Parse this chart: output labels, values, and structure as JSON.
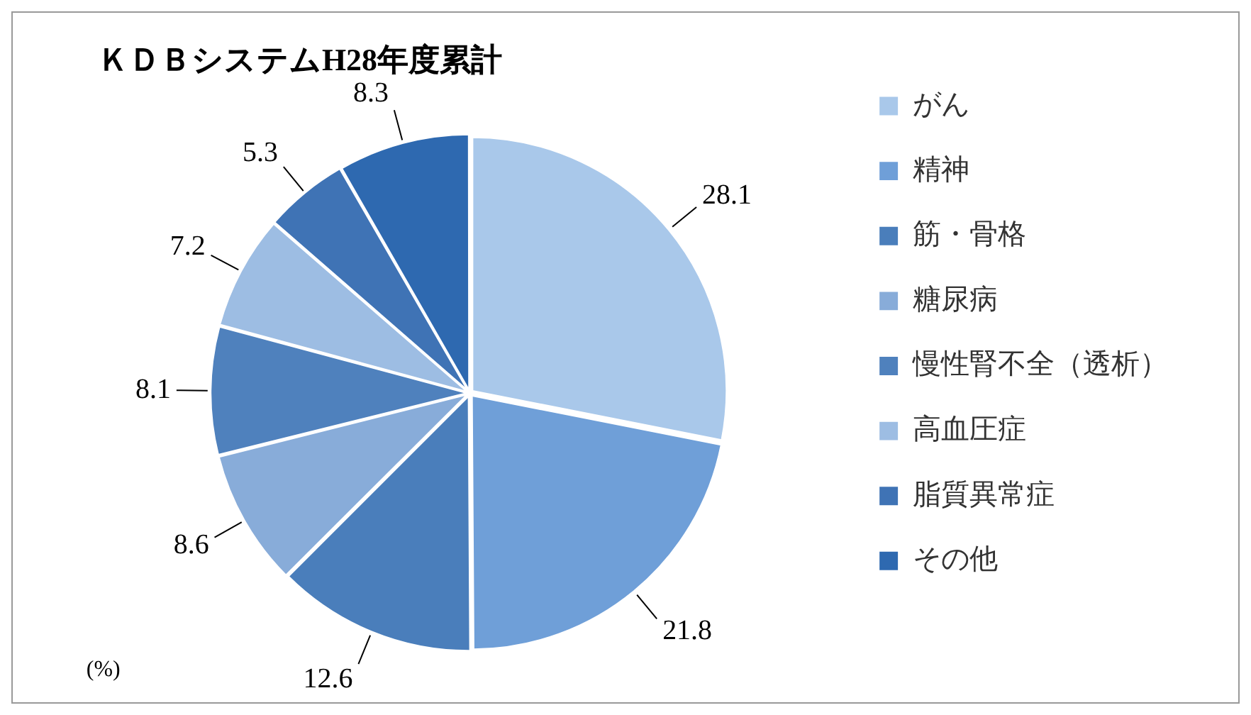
{
  "chart_data": {
    "type": "pie",
    "title": "ＫＤＢシステムH28年度累計",
    "categories": [
      "がん",
      "精神",
      "筋・骨格",
      "糖尿病",
      "慢性腎不全（透析）",
      "高血圧症",
      "脂質異常症",
      "その他"
    ],
    "values": [
      28.1,
      21.8,
      12.6,
      8.6,
      8.1,
      7.2,
      5.3,
      8.3
    ],
    "colors": [
      "#a9c8ea",
      "#6f9fd8",
      "#4a7ebb",
      "#88acd9",
      "#4f81bd",
      "#9dbde3",
      "#3f73b5",
      "#2e69b0"
    ],
    "data_labels": true,
    "legend": "right",
    "annotations": [
      "(%)"
    ]
  }
}
